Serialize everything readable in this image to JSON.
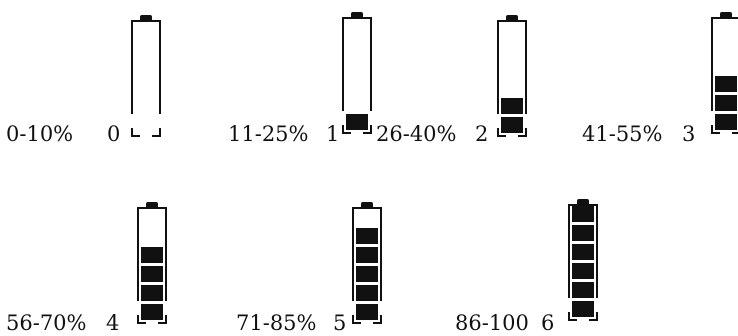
{
  "colors": {
    "outline": "#111111",
    "fill": "#111111",
    "background": "#ffffff"
  },
  "levels": [
    {
      "range": "0-10%",
      "level": "0",
      "bars": 0
    },
    {
      "range": "11-25%",
      "level": "1",
      "bars": 1
    },
    {
      "range": "26-40%",
      "level": "2",
      "bars": 2
    },
    {
      "range": "41-55%",
      "level": "3",
      "bars": 3
    },
    {
      "range": "56-70%",
      "level": "4",
      "bars": 4
    },
    {
      "range": "71-85%",
      "level": "5",
      "bars": 5
    },
    {
      "range": "86-100",
      "level": "6",
      "bars": 6
    }
  ]
}
